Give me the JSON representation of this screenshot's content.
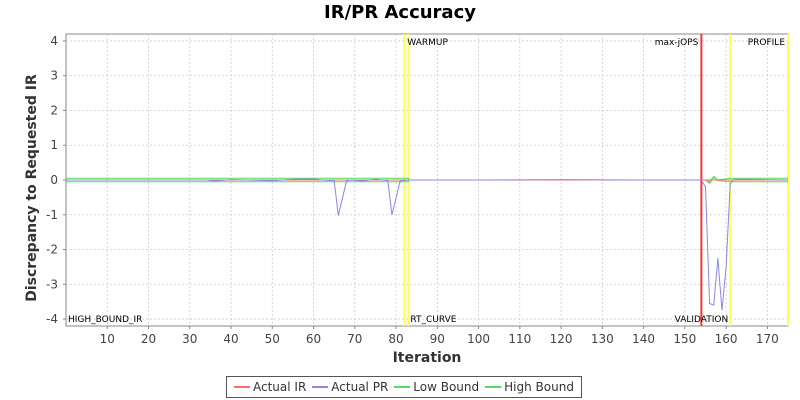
{
  "chart_data": {
    "type": "line",
    "title": "IR/PR Accuracy",
    "xlabel": "Iteration",
    "ylabel": "Discrepancy to Requested IR",
    "xlim": [
      0,
      175
    ],
    "ylim": [
      -4.2,
      4.2
    ],
    "x_ticks": [
      10,
      20,
      30,
      40,
      50,
      60,
      70,
      80,
      90,
      100,
      110,
      120,
      130,
      140,
      150,
      160,
      170
    ],
    "y_ticks": [
      4,
      3,
      2,
      1,
      0,
      -1,
      -2,
      -3,
      -4
    ],
    "grid": true,
    "legend_position": "bottom",
    "colors": {
      "actual_ir": "#ff6b6b",
      "actual_pr": "#8888e8",
      "low_bound": "#55dd55",
      "high_bound": "#55dd55",
      "phase_marker": "#ffff55",
      "max_jops_marker": "#ff3333"
    },
    "markers": [
      {
        "label": "WARMUP",
        "x": 82,
        "color": "#ffff55"
      },
      {
        "label": "",
        "x": 83,
        "color": "#ffff55"
      },
      {
        "label": "max-jOPS",
        "x": 154,
        "color": "#ff3333"
      },
      {
        "label": "",
        "x": 161,
        "color": "#ffff55"
      },
      {
        "label": "PROFILE",
        "x": 175,
        "color": "#ffff55"
      }
    ],
    "bottom_labels": [
      {
        "label": "HIGH_BOUND_IR",
        "x": 0
      },
      {
        "label": "RT_CURVE",
        "x": 83
      },
      {
        "label": "VALIDATION",
        "x": 161
      }
    ],
    "series": [
      {
        "name": "Actual IR",
        "points": [
          [
            0,
            0
          ],
          [
            175,
            0
          ]
        ]
      },
      {
        "name": "Actual PR",
        "points": [
          [
            0,
            0
          ],
          [
            34,
            0
          ],
          [
            36,
            -0.03
          ],
          [
            40,
            0.01
          ],
          [
            50,
            -0.02
          ],
          [
            55,
            0.02
          ],
          [
            60,
            0.03
          ],
          [
            62,
            0.0
          ],
          [
            65,
            -0.02
          ],
          [
            66,
            -1.02
          ],
          [
            68,
            -0.02
          ],
          [
            69,
            0.0
          ],
          [
            72,
            -0.03
          ],
          [
            75,
            0.02
          ],
          [
            78,
            -0.02
          ],
          [
            79,
            -1.0
          ],
          [
            81,
            -0.03
          ],
          [
            83,
            0
          ],
          [
            100,
            0
          ],
          [
            120,
            0.01
          ],
          [
            140,
            0
          ],
          [
            154,
            0
          ],
          [
            155,
            -0.2
          ],
          [
            156,
            -3.55
          ],
          [
            157,
            -3.6
          ],
          [
            158,
            -2.25
          ],
          [
            159,
            -3.75
          ],
          [
            160,
            -2.5
          ],
          [
            161,
            -0.1
          ],
          [
            162,
            0.02
          ],
          [
            175,
            0
          ]
        ]
      },
      {
        "name": "Low Bound",
        "points": [
          [
            0,
            -0.05
          ],
          [
            83,
            -0.05
          ],
          [
            83,
            0
          ],
          [
            154,
            0
          ],
          [
            155,
            0
          ],
          [
            156,
            -0.1
          ],
          [
            157,
            0.08
          ],
          [
            158,
            -0.02
          ],
          [
            161,
            -0.05
          ],
          [
            175,
            -0.05
          ]
        ]
      },
      {
        "name": "High Bound",
        "points": [
          [
            0,
            0.05
          ],
          [
            83,
            0.05
          ],
          [
            83,
            0
          ],
          [
            154,
            0
          ],
          [
            155,
            0
          ],
          [
            156,
            -0.05
          ],
          [
            157,
            0.1
          ],
          [
            158,
            0.0
          ],
          [
            161,
            0.05
          ],
          [
            175,
            0.05
          ]
        ]
      }
    ]
  }
}
